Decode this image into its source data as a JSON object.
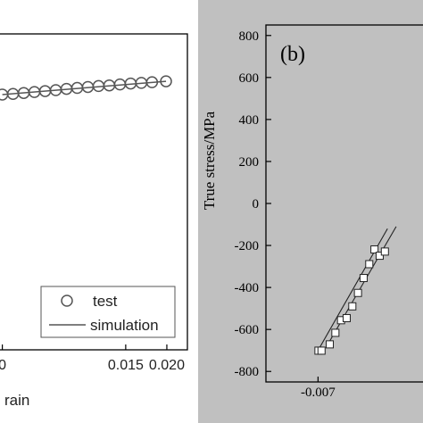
{
  "chart_data": [
    {
      "type": "line",
      "xlabel": "rain",
      "ylabel": "",
      "xlim": [
        -0.0005,
        0.0225
      ],
      "ylim": [
        0,
        1
      ],
      "x_ticks": [
        "0",
        "0.015",
        "0.020"
      ],
      "grid": false,
      "legend": {
        "position": "bottom-right",
        "entries": [
          "test",
          "simulation"
        ]
      },
      "series": [
        {
          "name": "test",
          "marker": "open-circle",
          "x": [
            0.0,
            0.0013,
            0.0026,
            0.0039,
            0.0052,
            0.0065,
            0.0078,
            0.0091,
            0.0104,
            0.0117,
            0.013,
            0.0143,
            0.0156,
            0.0169,
            0.0182,
            0.0199
          ],
          "y": [
            0.808,
            0.81,
            0.813,
            0.816,
            0.819,
            0.822,
            0.826,
            0.829,
            0.832,
            0.835,
            0.837,
            0.84,
            0.843,
            0.845,
            0.847,
            0.85
          ]
        },
        {
          "name": "simulation",
          "marker": "none",
          "x": [
            0.0,
            0.0199
          ],
          "y": [
            0.808,
            0.85
          ]
        }
      ]
    },
    {
      "type": "scatter",
      "panel_label": "(b)",
      "ylabel": "True stress/MPa",
      "xlabel": "",
      "ylim": [
        -850,
        850
      ],
      "xlim": [
        -0.0082,
        -0.0045
      ],
      "y_ticks": [
        "800",
        "600",
        "400",
        "200",
        "0",
        "-200",
        "-400",
        "-600",
        "-800"
      ],
      "x_ticks": [
        "-0.007"
      ],
      "grid": false,
      "series": [
        {
          "marker": "open-square",
          "x": [
            -0.00699,
            -0.00692,
            -0.00673,
            -0.0066,
            -0.00647,
            -0.00634,
            -0.00621,
            -0.00608,
            -0.00595,
            -0.00582,
            -0.0057,
            -0.00558,
            -0.00546
          ],
          "y": [
            -701,
            -701,
            -671,
            -616,
            -556,
            -546,
            -490,
            -426,
            -355,
            -289,
            -219,
            -249,
            -229
          ]
        }
      ],
      "lines": [
        {
          "x": [
            -0.007,
            -0.0054
          ],
          "y": [
            -700,
            -120
          ]
        },
        {
          "x": [
            -0.0068,
            -0.0052
          ],
          "y": [
            -680,
            -110
          ]
        }
      ]
    }
  ]
}
